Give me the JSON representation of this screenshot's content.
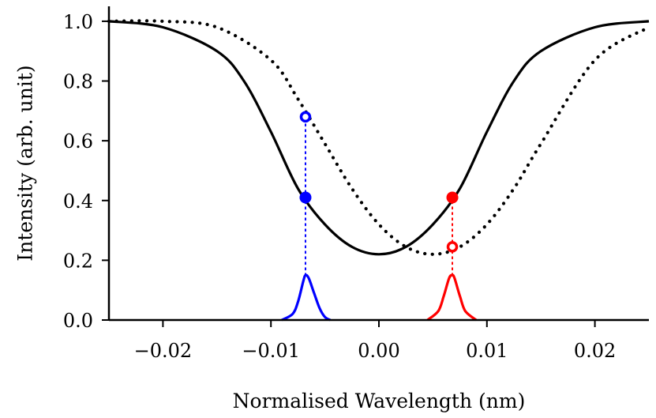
{
  "chart_data": {
    "type": "line",
    "xlabel": "Normalised Wavelength (nm)",
    "ylabel": "Intensity (arb. unit)",
    "xlim": [
      -0.025,
      0.025
    ],
    "ylim": [
      0.0,
      1.05
    ],
    "x_ticks": [
      -0.02,
      -0.01,
      0.0,
      0.01,
      0.02
    ],
    "x_tick_labels": [
      "−0.02",
      "−0.01",
      "0.00",
      "0.01",
      "0.02"
    ],
    "y_ticks": [
      0.0,
      0.2,
      0.4,
      0.6,
      0.8,
      1.0
    ],
    "y_tick_labels": [
      "0.0",
      "0.2",
      "0.4",
      "0.6",
      "0.8",
      "1.0"
    ],
    "grid": false,
    "series": [
      {
        "style": "solid",
        "color": "#000000",
        "x": [
          -0.025,
          -0.02,
          -0.015,
          -0.0125,
          -0.01,
          -0.0075,
          -0.005,
          -0.0025,
          0.0,
          0.0025,
          0.005,
          0.0075,
          0.01,
          0.0125,
          0.015,
          0.02,
          0.025
        ],
        "y": [
          1.0,
          0.98,
          0.9,
          0.8,
          0.63,
          0.44,
          0.32,
          0.245,
          0.22,
          0.245,
          0.32,
          0.44,
          0.63,
          0.8,
          0.9,
          0.98,
          1.0
        ]
      },
      {
        "style": "dotted",
        "color": "#000000",
        "x": [
          -0.025,
          -0.02,
          -0.015,
          -0.01,
          -0.0075,
          -0.005,
          -0.0025,
          0.0,
          0.0025,
          0.005,
          0.0075,
          0.01,
          0.0125,
          0.015,
          0.02,
          0.025
        ],
        "y": [
          1.0,
          1.0,
          0.98,
          0.87,
          0.74,
          0.59,
          0.44,
          0.32,
          0.245,
          0.22,
          0.245,
          0.32,
          0.44,
          0.59,
          0.87,
          0.98
        ]
      },
      {
        "style": "solid",
        "color": "#0000ff",
        "x": [
          -0.009,
          -0.008,
          -0.0075,
          -0.007,
          -0.0068,
          -0.0065,
          -0.006,
          -0.0055,
          -0.005,
          -0.0045
        ],
        "y": [
          0.0,
          0.02,
          0.06,
          0.13,
          0.15,
          0.14,
          0.09,
          0.04,
          0.01,
          0.0
        ]
      },
      {
        "style": "solid",
        "color": "#ff0000",
        "x": [
          0.0045,
          0.0055,
          0.006,
          0.0065,
          0.0068,
          0.007,
          0.0075,
          0.008,
          0.009
        ],
        "y": [
          0.0,
          0.03,
          0.08,
          0.14,
          0.15,
          0.14,
          0.08,
          0.03,
          0.0
        ]
      }
    ],
    "markers": [
      {
        "x": -0.0068,
        "y": 0.41,
        "color": "#0000ff",
        "fill": "filled"
      },
      {
        "x": -0.0068,
        "y": 0.68,
        "color": "#0000ff",
        "fill": "open"
      },
      {
        "x": 0.0068,
        "y": 0.41,
        "color": "#ff0000",
        "fill": "filled"
      },
      {
        "x": 0.0068,
        "y": 0.245,
        "color": "#ff0000",
        "fill": "open"
      }
    ],
    "vlines": [
      {
        "x": -0.0068,
        "y0": 0.15,
        "y1": 0.68,
        "color": "#0000ff"
      },
      {
        "x": 0.0068,
        "y0": 0.15,
        "y1": 0.41,
        "color": "#ff0000"
      }
    ]
  }
}
